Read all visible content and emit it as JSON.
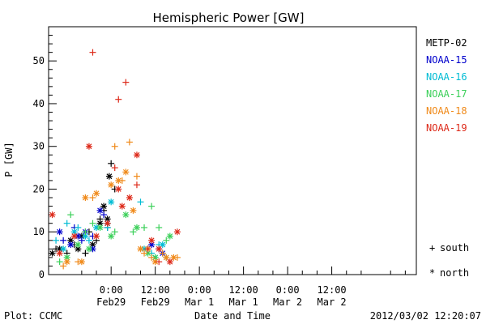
{
  "footer": {
    "left": "Plot: CCMC",
    "center": "Date and Time",
    "right": "2012/03/02 12:20:07"
  },
  "marker_legend": {
    "south_symbol": "+",
    "south_label": "south",
    "north_symbol": "*",
    "north_label": "north"
  },
  "chart_data": {
    "type": "scatter",
    "title": "Hemispheric Power [GW]",
    "xlabel": "Date and Time",
    "ylabel": "P [GW]",
    "ylim": [
      0,
      58
    ],
    "xlim_hours": [
      -17,
      83
    ],
    "x_unit": "hours from Feb29 00:00",
    "y_ticks": [
      0,
      10,
      20,
      30,
      40,
      50
    ],
    "x_ticks": [
      {
        "x": 0,
        "time": "0:00",
        "date": "Feb29"
      },
      {
        "x": 12,
        "time": "12:00",
        "date": "Feb29"
      },
      {
        "x": 24,
        "time": "0:00",
        "date": "Mar 1"
      },
      {
        "x": 36,
        "time": "12:00",
        "date": "Mar 1"
      },
      {
        "x": 48,
        "time": "0:00",
        "date": "Mar 2"
      },
      {
        "x": 60,
        "time": "12:00",
        "date": "Mar 2"
      }
    ],
    "grid": false,
    "legend_placement": "right",
    "series": [
      {
        "name": "METP-02",
        "color": "#000000",
        "south": [
          [
            -15,
            6
          ],
          [
            -12,
            5
          ],
          [
            -10,
            7
          ],
          [
            -7,
            5
          ],
          [
            -6,
            10
          ],
          [
            -4,
            8
          ],
          [
            -3,
            13
          ],
          [
            -2,
            15
          ],
          [
            -1,
            11
          ],
          [
            0,
            26
          ],
          [
            1,
            20
          ]
        ],
        "north": [
          [
            -16,
            5
          ],
          [
            -14,
            6
          ],
          [
            -11,
            8
          ],
          [
            -9,
            6
          ],
          [
            -8,
            9
          ],
          [
            -5,
            7
          ],
          [
            -3,
            12
          ],
          [
            -2,
            16
          ],
          [
            -1,
            13
          ],
          [
            -0.5,
            23
          ]
        ]
      },
      {
        "name": "NOAA-15",
        "color": "#0000cc",
        "south": [
          [
            -13,
            8
          ],
          [
            -10,
            11
          ],
          [
            -8,
            8
          ],
          [
            -5,
            9
          ],
          [
            -2,
            14
          ],
          [
            10,
            6
          ],
          [
            13,
            6
          ]
        ],
        "north": [
          [
            -14,
            10
          ],
          [
            -11,
            7
          ],
          [
            -9,
            9
          ],
          [
            -7,
            10
          ],
          [
            -5,
            6
          ],
          [
            -3,
            15
          ],
          [
            -1,
            12
          ],
          [
            11,
            7
          ],
          [
            14,
            5
          ]
        ]
      },
      {
        "name": "NOAA-16",
        "color": "#00bcd4",
        "south": [
          [
            -15,
            8
          ],
          [
            -12,
            12
          ],
          [
            -9,
            11
          ],
          [
            -6,
            8
          ],
          [
            -1,
            11
          ],
          [
            8,
            17
          ],
          [
            11,
            5
          ],
          [
            13,
            7
          ],
          [
            15,
            4
          ]
        ],
        "north": [
          [
            -13,
            6
          ],
          [
            -10,
            10
          ],
          [
            -7,
            9
          ],
          [
            -4,
            11
          ],
          [
            0,
            17
          ],
          [
            9,
            6
          ],
          [
            12,
            4
          ],
          [
            14,
            7
          ]
        ]
      },
      {
        "name": "NOAA-17",
        "color": "#3cd05a",
        "south": [
          [
            -14,
            3
          ],
          [
            -11,
            14
          ],
          [
            -7,
            10
          ],
          [
            -5,
            12
          ],
          [
            -1,
            12
          ],
          [
            1,
            10
          ],
          [
            6,
            10
          ],
          [
            9,
            11
          ],
          [
            11,
            16
          ],
          [
            13,
            11
          ],
          [
            15,
            8
          ]
        ],
        "north": [
          [
            -12,
            4
          ],
          [
            -9,
            7
          ],
          [
            -6,
            6
          ],
          [
            -3,
            11
          ],
          [
            0,
            9
          ],
          [
            4,
            14
          ],
          [
            7,
            11
          ],
          [
            10,
            5
          ],
          [
            12,
            4
          ],
          [
            16,
            9
          ]
        ]
      },
      {
        "name": "NOAA-18",
        "color": "#f08a1a",
        "south": [
          [
            -13,
            2
          ],
          [
            -9,
            3
          ],
          [
            -5,
            18
          ],
          [
            1,
            30
          ],
          [
            3,
            22
          ],
          [
            5,
            31
          ],
          [
            7,
            23
          ],
          [
            9,
            5
          ],
          [
            11,
            4
          ],
          [
            14,
            5
          ],
          [
            18,
            4
          ]
        ],
        "north": [
          [
            -12,
            3
          ],
          [
            -8,
            3
          ],
          [
            -7,
            18
          ],
          [
            -4,
            19
          ],
          [
            0,
            21
          ],
          [
            2,
            22
          ],
          [
            4,
            24
          ],
          [
            6,
            15
          ],
          [
            8,
            6
          ],
          [
            10,
            6
          ],
          [
            12,
            3
          ],
          [
            15,
            4
          ],
          [
            17,
            4
          ]
        ]
      },
      {
        "name": "NOAA-19",
        "color": "#dd2a1a",
        "south": [
          [
            -5,
            52
          ],
          [
            1,
            25
          ],
          [
            2,
            41
          ],
          [
            4,
            45
          ],
          [
            7,
            21
          ],
          [
            10,
            6
          ],
          [
            13,
            3
          ]
        ],
        "north": [
          [
            -16,
            14
          ],
          [
            -14,
            5
          ],
          [
            -10,
            9
          ],
          [
            -6,
            30
          ],
          [
            -4,
            9
          ],
          [
            -1,
            12
          ],
          [
            2,
            20
          ],
          [
            3,
            16
          ],
          [
            5,
            18
          ],
          [
            7,
            28
          ],
          [
            11,
            8
          ],
          [
            13,
            6
          ],
          [
            16,
            3
          ],
          [
            18,
            10
          ]
        ]
      }
    ]
  }
}
